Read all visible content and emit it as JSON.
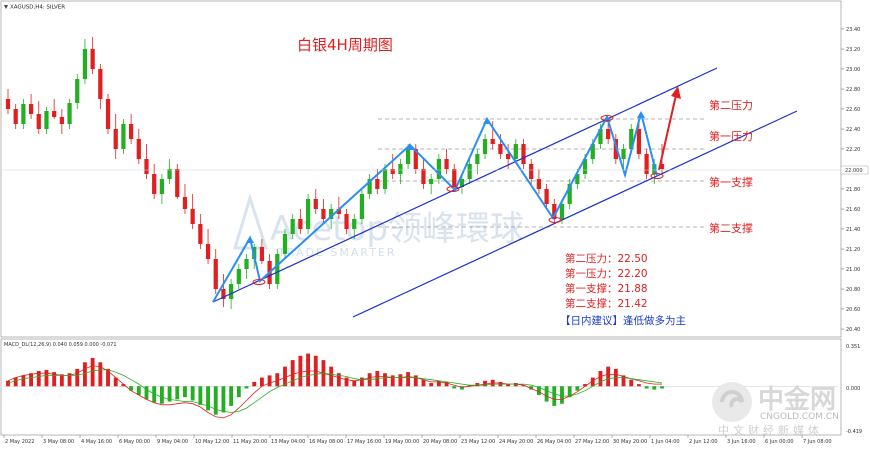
{
  "header": {
    "symbol": "XAGUSD,H4: SILVER"
  },
  "chart_data": {
    "type": "candlestick",
    "title": "白银4H周期图",
    "y_ticks": [
      "23.40",
      "23.20",
      "23.00",
      "22.80",
      "22.60",
      "22.40",
      "22.20",
      "22.00",
      "21.80",
      "21.60",
      "21.40",
      "21.20",
      "21.00",
      "20.80",
      "20.60",
      "20.40"
    ],
    "ylim": [
      20.35,
      23.55
    ],
    "x_ticks": [
      "2 May 2022",
      "3 May 08:00",
      "4 May 16:00",
      "6 May 00:00",
      "9 May 04:00",
      "10 May 12:00",
      "11 May 20:00",
      "13 May 04:00",
      "16 May 08:00",
      "17 May 16:00",
      "19 May 00:00",
      "20 May 08:00",
      "23 May 12:00",
      "24 May 20:00",
      "26 May 04:00",
      "27 May 12:00",
      "30 May 20:00",
      "1 Jun 04:00",
      "2 Jun 12:00",
      "3 Jun 16:00",
      "6 Jun 00:00",
      "7 Jun 08:00"
    ],
    "current_price": "22.000",
    "current_price_y": 21.99,
    "levels": [
      {
        "name": "第二压力",
        "value": 22.5
      },
      {
        "name": "第一压力",
        "value": 22.2
      },
      {
        "name": "第一支撑",
        "value": 21.88
      },
      {
        "name": "第二支撑",
        "value": 21.42
      }
    ],
    "notes": [
      {
        "label": "第二压力",
        "value": "22.50"
      },
      {
        "label": "第一压力",
        "value": "22.20"
      },
      {
        "label": "第一支撑",
        "value": "21.88"
      },
      {
        "label": "第二支撑",
        "value": "21.42"
      }
    ],
    "advice": "【日内建议】逢低做多为主",
    "candles": [
      [
        22.7,
        22.8,
        22.55,
        22.6
      ],
      [
        22.6,
        22.65,
        22.4,
        22.45
      ],
      [
        22.45,
        22.7,
        22.4,
        22.65
      ],
      [
        22.65,
        22.75,
        22.5,
        22.55
      ],
      [
        22.55,
        22.68,
        22.35,
        22.4
      ],
      [
        22.4,
        22.62,
        22.35,
        22.58
      ],
      [
        22.58,
        22.7,
        22.5,
        22.52
      ],
      [
        22.52,
        22.6,
        22.35,
        22.45
      ],
      [
        22.45,
        22.7,
        22.4,
        22.66
      ],
      [
        22.66,
        22.95,
        22.6,
        22.9
      ],
      [
        22.9,
        23.3,
        22.85,
        23.2
      ],
      [
        23.2,
        23.32,
        22.95,
        23.0
      ],
      [
        23.0,
        23.05,
        22.6,
        22.7
      ],
      [
        22.7,
        22.75,
        22.35,
        22.4
      ],
      [
        22.4,
        22.55,
        22.1,
        22.2
      ],
      [
        22.2,
        22.5,
        22.15,
        22.45
      ],
      [
        22.45,
        22.55,
        22.25,
        22.3
      ],
      [
        22.3,
        22.4,
        22.05,
        22.1
      ],
      [
        22.1,
        22.25,
        21.9,
        21.95
      ],
      [
        21.95,
        22.05,
        21.7,
        21.75
      ],
      [
        21.75,
        21.95,
        21.65,
        21.9
      ],
      [
        21.9,
        22.1,
        21.85,
        22.0
      ],
      [
        22.0,
        22.05,
        21.7,
        21.72
      ],
      [
        21.72,
        21.85,
        21.55,
        21.6
      ],
      [
        21.6,
        21.75,
        21.4,
        21.45
      ],
      [
        21.45,
        21.55,
        21.2,
        21.25
      ],
      [
        21.25,
        21.4,
        21.05,
        21.1
      ],
      [
        21.1,
        21.2,
        20.75,
        20.8
      ],
      [
        20.8,
        20.95,
        20.62,
        20.7
      ],
      [
        20.7,
        20.9,
        20.6,
        20.85
      ],
      [
        20.85,
        21.05,
        20.8,
        21.0
      ],
      [
        21.0,
        21.15,
        20.9,
        21.1
      ],
      [
        21.1,
        21.25,
        21.0,
        21.22
      ],
      [
        21.22,
        21.3,
        21.05,
        21.08
      ],
      [
        21.08,
        21.15,
        20.8,
        20.85
      ],
      [
        20.85,
        21.2,
        20.8,
        21.15
      ],
      [
        21.15,
        21.4,
        21.1,
        21.35
      ],
      [
        21.35,
        21.55,
        21.3,
        21.5
      ],
      [
        21.5,
        21.6,
        21.35,
        21.4
      ],
      [
        21.4,
        21.75,
        21.35,
        21.7
      ],
      [
        21.7,
        21.8,
        21.55,
        21.6
      ],
      [
        21.6,
        21.7,
        21.45,
        21.5
      ],
      [
        21.5,
        21.65,
        21.4,
        21.6
      ],
      [
        21.6,
        21.72,
        21.5,
        21.55
      ],
      [
        21.55,
        21.6,
        21.35,
        21.4
      ],
      [
        21.4,
        21.55,
        21.3,
        21.5
      ],
      [
        21.5,
        21.8,
        21.45,
        21.75
      ],
      [
        21.75,
        21.95,
        21.7,
        21.9
      ],
      [
        21.9,
        22.0,
        21.75,
        21.8
      ],
      [
        21.8,
        22.05,
        21.75,
        22.0
      ],
      [
        22.0,
        22.15,
        21.9,
        21.95
      ],
      [
        21.95,
        22.1,
        21.85,
        22.05
      ],
      [
        22.05,
        22.25,
        22.0,
        22.2
      ],
      [
        22.2,
        22.25,
        21.95,
        22.0
      ],
      [
        22.0,
        22.1,
        21.8,
        21.85
      ],
      [
        21.85,
        21.95,
        21.75,
        21.9
      ],
      [
        21.9,
        22.15,
        21.85,
        22.1
      ],
      [
        22.1,
        22.2,
        21.95,
        22.0
      ],
      [
        22.0,
        22.05,
        21.8,
        21.82
      ],
      [
        21.82,
        21.95,
        21.75,
        21.9
      ],
      [
        21.9,
        22.1,
        21.85,
        22.05
      ],
      [
        22.05,
        22.2,
        21.95,
        22.15
      ],
      [
        22.15,
        22.35,
        22.1,
        22.3
      ],
      [
        22.3,
        22.48,
        22.2,
        22.25
      ],
      [
        22.25,
        22.35,
        22.1,
        22.15
      ],
      [
        22.15,
        22.25,
        22.0,
        22.1
      ],
      [
        22.1,
        22.3,
        22.05,
        22.25
      ],
      [
        22.25,
        22.3,
        22.0,
        22.05
      ],
      [
        22.05,
        22.1,
        21.85,
        21.9
      ],
      [
        21.9,
        22.0,
        21.75,
        21.8
      ],
      [
        21.8,
        21.85,
        21.6,
        21.65
      ],
      [
        21.65,
        21.7,
        21.45,
        21.5
      ],
      [
        21.5,
        21.7,
        21.45,
        21.65
      ],
      [
        21.65,
        21.9,
        21.6,
        21.85
      ],
      [
        21.85,
        22.0,
        21.8,
        21.95
      ],
      [
        21.95,
        22.15,
        21.9,
        22.1
      ],
      [
        22.1,
        22.3,
        22.05,
        22.25
      ],
      [
        22.25,
        22.45,
        22.2,
        22.4
      ],
      [
        22.4,
        22.5,
        22.25,
        22.3
      ],
      [
        22.3,
        22.35,
        22.05,
        22.1
      ],
      [
        22.1,
        22.25,
        22.0,
        22.2
      ],
      [
        22.2,
        22.45,
        22.15,
        22.4
      ],
      [
        22.4,
        22.48,
        22.1,
        22.15
      ],
      [
        22.15,
        22.2,
        21.9,
        21.95
      ],
      [
        21.95,
        22.1,
        21.85,
        22.05
      ],
      [
        22.05,
        22.25,
        21.95,
        22.0
      ]
    ]
  },
  "macd": {
    "label": "MACD_DL(12,26,9) 0.040 0.059 0.000 -0.071",
    "y_top": "0.351",
    "y_mid": "0.000",
    "y_bot": "-0.419",
    "ylim": [
      -0.419,
      0.351
    ],
    "hist": [
      0.05,
      0.08,
      0.1,
      0.12,
      0.14,
      0.15,
      0.13,
      0.11,
      0.12,
      0.16,
      0.22,
      0.26,
      0.22,
      0.16,
      0.08,
      0.02,
      -0.04,
      -0.08,
      -0.12,
      -0.15,
      -0.16,
      -0.14,
      -0.12,
      -0.1,
      -0.13,
      -0.17,
      -0.22,
      -0.26,
      -0.24,
      -0.18,
      -0.1,
      -0.02,
      0.04,
      0.08,
      0.1,
      0.12,
      0.18,
      0.24,
      0.28,
      0.3,
      0.28,
      0.24,
      0.18,
      0.12,
      0.08,
      0.05,
      0.08,
      0.12,
      0.14,
      0.12,
      0.1,
      0.11,
      0.13,
      0.1,
      0.06,
      0.03,
      0.05,
      0.04,
      -0.02,
      -0.03,
      0.01,
      0.03,
      0.05,
      0.06,
      0.04,
      0.02,
      0.03,
      0.01,
      -0.03,
      -0.08,
      -0.14,
      -0.18,
      -0.16,
      -0.1,
      -0.04,
      0.02,
      0.08,
      0.14,
      0.18,
      0.16,
      0.1,
      0.06,
      0.02,
      -0.02,
      -0.03,
      -0.02
    ],
    "line_red": [
      0.05,
      0.08,
      0.1,
      0.11,
      0.12,
      0.12,
      0.11,
      0.1,
      0.1,
      0.12,
      0.16,
      0.19,
      0.18,
      0.14,
      0.08,
      0.02,
      -0.04,
      -0.08,
      -0.12,
      -0.15,
      -0.17,
      -0.17,
      -0.16,
      -0.15,
      -0.16,
      -0.19,
      -0.24,
      -0.28,
      -0.29,
      -0.26,
      -0.2,
      -0.13,
      -0.06,
      0.0,
      0.03,
      0.05,
      0.08,
      0.11,
      0.13,
      0.14,
      0.14,
      0.12,
      0.1,
      0.08,
      0.06,
      0.05,
      0.06,
      0.08,
      0.09,
      0.09,
      0.08,
      0.08,
      0.09,
      0.08,
      0.06,
      0.04,
      0.04,
      0.03,
      0.01,
      -0.01,
      0.0,
      0.01,
      0.02,
      0.03,
      0.03,
      0.02,
      0.02,
      0.01,
      -0.02,
      -0.05,
      -0.09,
      -0.12,
      -0.12,
      -0.09,
      -0.05,
      0.0,
      0.05,
      0.09,
      0.11,
      0.11,
      0.09,
      0.07,
      0.05,
      0.03,
      0.02,
      0.02
    ],
    "line_green": [
      0.03,
      0.05,
      0.07,
      0.08,
      0.09,
      0.1,
      0.1,
      0.1,
      0.1,
      0.1,
      0.12,
      0.14,
      0.15,
      0.15,
      0.13,
      0.1,
      0.06,
      0.02,
      -0.03,
      -0.07,
      -0.1,
      -0.12,
      -0.13,
      -0.14,
      -0.14,
      -0.16,
      -0.18,
      -0.21,
      -0.23,
      -0.24,
      -0.23,
      -0.2,
      -0.15,
      -0.1,
      -0.05,
      -0.01,
      0.02,
      0.05,
      0.08,
      0.1,
      0.11,
      0.12,
      0.11,
      0.1,
      0.09,
      0.07,
      0.06,
      0.06,
      0.07,
      0.08,
      0.08,
      0.08,
      0.08,
      0.08,
      0.07,
      0.06,
      0.05,
      0.04,
      0.03,
      0.02,
      0.01,
      0.01,
      0.01,
      0.02,
      0.02,
      0.02,
      0.02,
      0.02,
      0.01,
      -0.01,
      -0.04,
      -0.07,
      -0.09,
      -0.09,
      -0.07,
      -0.04,
      0.0,
      0.04,
      0.07,
      0.08,
      0.08,
      0.07,
      0.06,
      0.05,
      0.04,
      0.03
    ]
  },
  "watermark": {
    "brand": "Acetop领峰環球",
    "slogan": "TRADE SMARTER"
  },
  "logo": {
    "name": "中金网",
    "domain": "CNGOLD.COM.CN",
    "tagline": "中文财经新媒体"
  },
  "colors": {
    "up": "#22b022",
    "down": "#e02020",
    "channel": "#1a2fd0",
    "zigzag": "#2a8ff0",
    "arrow": "#e02020",
    "level_line": "#9a9a9a"
  }
}
